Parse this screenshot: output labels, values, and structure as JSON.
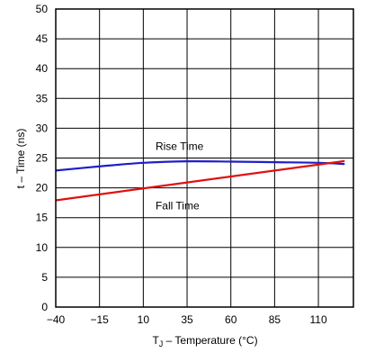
{
  "chart_data": {
    "type": "line",
    "xlabel": {
      "prefix": "T",
      "sub": "J",
      "rest": " – Temperature (°C)"
    },
    "ylabel": "t – Time (ns)",
    "xlim": [
      -40,
      130
    ],
    "ylim": [
      0,
      50
    ],
    "x_ticks": [
      -40,
      -15,
      10,
      35,
      60,
      85,
      110
    ],
    "x_tick_labels": [
      "−40",
      "−15",
      "10",
      "35",
      "60",
      "85",
      "110"
    ],
    "y_ticks": [
      0,
      5,
      10,
      15,
      20,
      25,
      30,
      35,
      40,
      45,
      50
    ],
    "y_tick_labels": [
      "0",
      "5",
      "10",
      "15",
      "20",
      "25",
      "30",
      "35",
      "40",
      "45",
      "50"
    ],
    "grid": true,
    "series": [
      {
        "name": "Rise Time",
        "color": "#1f1fc8",
        "x": [
          -40,
          -15,
          10,
          35,
          60,
          85,
          110,
          125
        ],
        "y": [
          22.9,
          23.6,
          24.2,
          24.45,
          24.4,
          24.3,
          24.2,
          24.0
        ]
      },
      {
        "name": "Fall Time",
        "color": "#e01010",
        "x": [
          -40,
          125
        ],
        "y": [
          17.9,
          24.5
        ]
      }
    ],
    "annotations": [
      {
        "text": "Rise Time",
        "x": 17,
        "y": 27
      },
      {
        "text": "Fall Time",
        "x": 17,
        "y": 17
      }
    ]
  }
}
